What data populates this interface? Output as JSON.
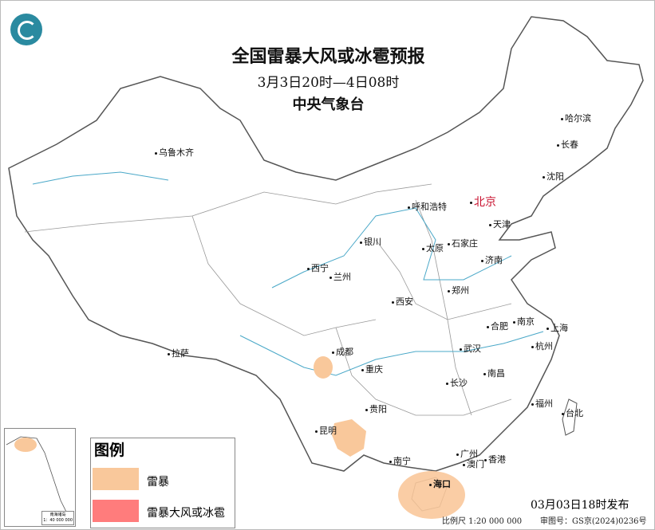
{
  "header": {
    "title": "全国雷暴大风或冰雹预报",
    "period": "3月3日20时—4日08时",
    "issuer": "中央气象台"
  },
  "legend": {
    "title": "图例",
    "items": [
      {
        "label": "雷暴",
        "color": "#f9c89b"
      },
      {
        "label": "雷暴大风或冰雹",
        "color": "#ff7c7c"
      }
    ]
  },
  "cities": {
    "urumqi": "乌鲁木齐",
    "harbin": "哈尔滨",
    "changchun": "长春",
    "shenyang": "沈阳",
    "beijing": "北京",
    "tianjin": "天津",
    "hohhot": "呼和浩特",
    "shijiazhuang": "石家庄",
    "taiyuan": "太原",
    "jinan": "济南",
    "yinchuan": "银川",
    "xining": "西宁",
    "lanzhou": "兰州",
    "zhengzhou": "郑州",
    "xian": "西安",
    "hefei": "合肥",
    "nanjing": "南京",
    "shanghai": "上海",
    "hangzhou": "杭州",
    "wuhan": "武汉",
    "chengdu": "成都",
    "chongqing": "重庆",
    "lhasa": "拉萨",
    "changsha": "长沙",
    "nanchang": "南昌",
    "fuzhou": "福州",
    "taipei": "台北",
    "guiyang": "贵阳",
    "kunming": "昆明",
    "nanning": "南宁",
    "guangzhou": "广州",
    "macau": "澳门",
    "hongkong": "香港",
    "haikou": "海口"
  },
  "inset": {
    "caption": "南海诸岛",
    "scale": "1：40 000 000"
  },
  "footer": {
    "issued": "03月03日18时发布",
    "scale": "比例尺 1:20 000 000",
    "review": "审图号：GS京(2024)0236号"
  },
  "colors": {
    "thunderstorm": "#f9c89b",
    "severe": "#ff7c7c",
    "beijing": "#c8102e",
    "rivers": "#4aa8c8"
  }
}
